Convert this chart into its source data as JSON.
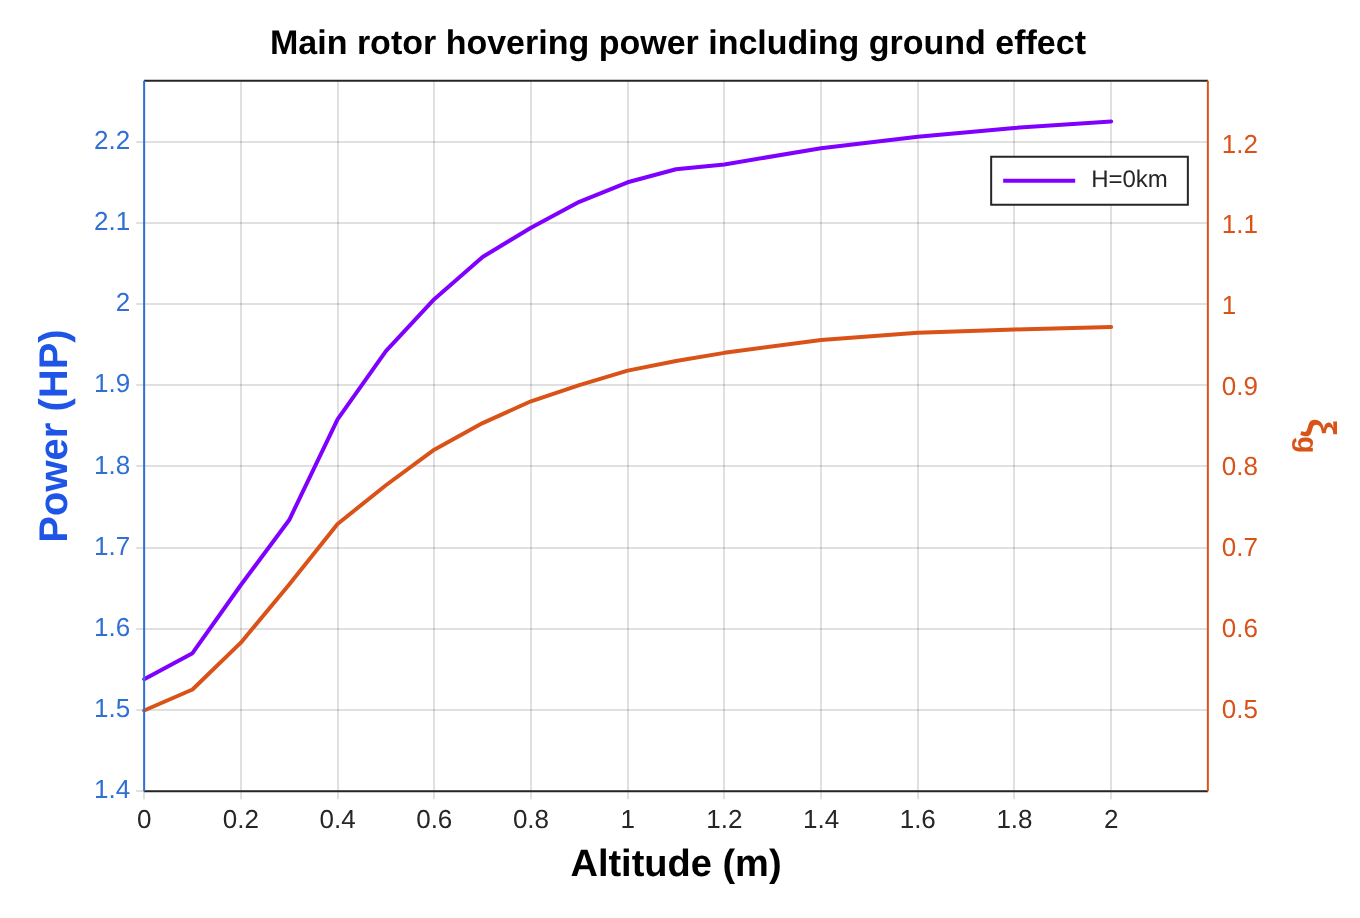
{
  "chart_data": {
    "type": "line",
    "title": "Main rotor hovering power including ground effect",
    "xlabel": "Altitude (m)",
    "ylabel": "Power (HP)",
    "y2label": "ξ$_{g}$",
    "x": [
      0,
      0.1,
      0.2,
      0.3,
      0.4,
      0.5,
      0.6,
      0.7,
      0.8,
      0.9,
      1.0,
      1.1,
      1.2,
      1.4,
      1.6,
      1.8,
      2.0
    ],
    "series": [
      {
        "name": "H=0km",
        "color": "#7f00ff",
        "values": [
          1.538,
          1.57,
          1.654,
          1.734,
          1.858,
          1.942,
          2.006,
          2.058,
          2.094,
          2.126,
          2.15,
          2.166,
          2.172,
          2.192,
          2.206,
          2.217,
          2.225
        ]
      },
      {
        "color": "#d95319",
        "axis": "y2",
        "values": [
          0.5,
          0.526,
          0.584,
          0.656,
          0.731,
          0.779,
          0.823,
          0.856,
          0.883,
          0.903,
          0.921,
          0.933,
          0.943,
          0.959,
          0.968,
          0.972,
          0.975
        ]
      }
    ],
    "xlim": [
      0,
      2.2
    ],
    "xticks": [
      0,
      0.2,
      0.4,
      0.6,
      0.8,
      1,
      1.2,
      1.4,
      1.6,
      1.8,
      2
    ],
    "ylim": [
      1.4,
      2.275
    ],
    "yticks": [
      1.4,
      1.5,
      1.6,
      1.7,
      1.8,
      1.9,
      2,
      2.1,
      2.2
    ],
    "y2lim": [
      0.4,
      1.28
    ],
    "y2ticks": [
      0.5,
      0.6,
      0.7,
      0.8,
      0.9,
      1,
      1.1,
      1.2
    ],
    "grid": true,
    "legend": "top right",
    "marker": "none",
    "line_style": "solid"
  }
}
